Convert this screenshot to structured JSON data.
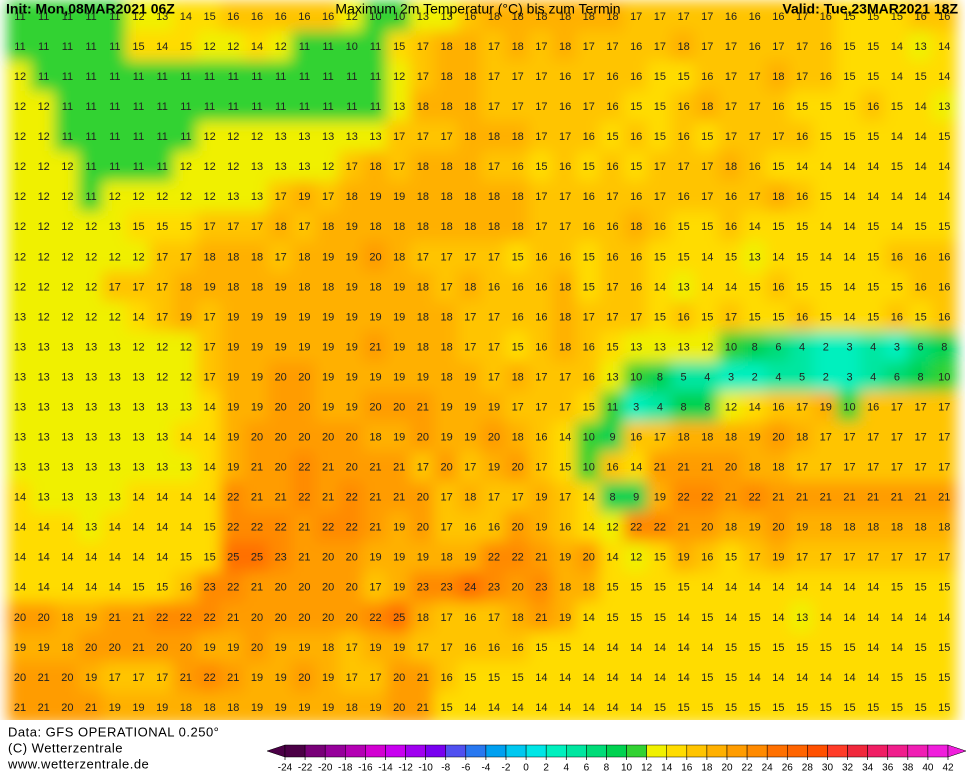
{
  "header": {
    "init": "Init: Mon,08MAR2021 06Z",
    "title": "Maximum 2m Temperatur (°C) bis zum Termin",
    "valid": "Valid: Tue,23MAR2021 18Z"
  },
  "footer": {
    "data": "Data: GFS OPERATIONAL 0.250°",
    "copyright": "(C) Wetterzentrale",
    "url": "www.wetterzentrale.de"
  },
  "colorbar": {
    "ticks": [
      -24,
      -22,
      -20,
      -18,
      -16,
      -14,
      -12,
      -10,
      -8,
      -6,
      -4,
      -2,
      0,
      2,
      4,
      6,
      8,
      10,
      12,
      14,
      16,
      18,
      20,
      22,
      24,
      26,
      28,
      30,
      32,
      34,
      36,
      38,
      40,
      42
    ],
    "colors": [
      "#4b0046",
      "#780078",
      "#96009b",
      "#b400b4",
      "#d200d2",
      "#c800f0",
      "#a000f0",
      "#7800f0",
      "#5050f0",
      "#2878f0",
      "#00a0f0",
      "#00c8f0",
      "#00e6e6",
      "#00f0be",
      "#00e6a0",
      "#00dc78",
      "#00d250",
      "#32d232",
      "#f0f000",
      "#ffdc00",
      "#ffc400",
      "#ffb000",
      "#ff9c00",
      "#ff8a00",
      "#ff7000",
      "#ff6400",
      "#ff5000",
      "#ff3c28",
      "#f0283c",
      "#f01e64",
      "#f01e8c",
      "#f01eb4",
      "#f01edc"
    ]
  },
  "grid": {
    "rows": [
      [
        11,
        11,
        11,
        11,
        11,
        12,
        13,
        14,
        15,
        16,
        16,
        16,
        16,
        16,
        12,
        10,
        10,
        13,
        13,
        16,
        18,
        18,
        18,
        18,
        18,
        18,
        17,
        17,
        17,
        17,
        16,
        16,
        16,
        17,
        16,
        15,
        15,
        15,
        16,
        16
      ],
      [
        11,
        11,
        11,
        11,
        11,
        15,
        14,
        15,
        12,
        12,
        14,
        12,
        11,
        11,
        10,
        11,
        15,
        17,
        18,
        18,
        17,
        18,
        17,
        18,
        17,
        17,
        16,
        17,
        18,
        17,
        17,
        16,
        17,
        17,
        16,
        15,
        15,
        14,
        13,
        14
      ],
      [
        12,
        11,
        11,
        11,
        11,
        11,
        11,
        11,
        11,
        11,
        11,
        11,
        11,
        11,
        11,
        11,
        12,
        17,
        18,
        18,
        17,
        17,
        17,
        16,
        17,
        16,
        16,
        15,
        15,
        16,
        17,
        17,
        18,
        17,
        16,
        15,
        15,
        14,
        15,
        14
      ],
      [
        12,
        12,
        11,
        11,
        11,
        11,
        11,
        11,
        11,
        11,
        11,
        11,
        11,
        11,
        11,
        11,
        13,
        18,
        18,
        18,
        17,
        17,
        17,
        16,
        17,
        16,
        15,
        15,
        16,
        18,
        17,
        17,
        16,
        15,
        15,
        15,
        16,
        15,
        14,
        13
      ],
      [
        12,
        12,
        11,
        11,
        11,
        11,
        11,
        11,
        12,
        12,
        12,
        13,
        13,
        13,
        13,
        13,
        17,
        17,
        17,
        18,
        18,
        18,
        17,
        17,
        16,
        15,
        16,
        15,
        16,
        15,
        17,
        17,
        17,
        16,
        15,
        15,
        15,
        14,
        14,
        15
      ],
      [
        12,
        12,
        12,
        11,
        11,
        11,
        11,
        12,
        12,
        12,
        13,
        13,
        13,
        12,
        17,
        18,
        17,
        18,
        18,
        18,
        17,
        16,
        15,
        16,
        15,
        16,
        15,
        17,
        17,
        17,
        18,
        16,
        15,
        14,
        14,
        14,
        14,
        15,
        14,
        14
      ],
      [
        12,
        12,
        12,
        11,
        12,
        12,
        12,
        12,
        12,
        13,
        13,
        17,
        19,
        17,
        18,
        19,
        19,
        18,
        18,
        18,
        18,
        18,
        17,
        17,
        16,
        17,
        16,
        17,
        16,
        17,
        16,
        17,
        18,
        16,
        15,
        14,
        14,
        14,
        14,
        14
      ],
      [
        12,
        12,
        12,
        12,
        13,
        15,
        15,
        15,
        17,
        17,
        17,
        18,
        17,
        18,
        19,
        18,
        18,
        18,
        18,
        18,
        18,
        18,
        17,
        17,
        16,
        16,
        18,
        16,
        15,
        15,
        16,
        14,
        15,
        15,
        14,
        14,
        15,
        14,
        15,
        15
      ],
      [
        12,
        12,
        12,
        12,
        12,
        12,
        17,
        17,
        18,
        18,
        18,
        17,
        18,
        19,
        19,
        20,
        18,
        17,
        17,
        17,
        17,
        15,
        16,
        16,
        15,
        16,
        16,
        15,
        15,
        14,
        15,
        13,
        14,
        15,
        14,
        14,
        15,
        16,
        16,
        16
      ],
      [
        12,
        12,
        12,
        12,
        17,
        17,
        17,
        18,
        19,
        18,
        18,
        19,
        18,
        18,
        19,
        18,
        19,
        18,
        17,
        18,
        16,
        16,
        16,
        18,
        15,
        17,
        16,
        14,
        13,
        14,
        14,
        15,
        16,
        15,
        15,
        14,
        15,
        15,
        16,
        16
      ],
      [
        13,
        12,
        12,
        12,
        12,
        14,
        17,
        19,
        17,
        19,
        19,
        19,
        19,
        19,
        19,
        19,
        19,
        18,
        18,
        17,
        17,
        16,
        16,
        18,
        17,
        17,
        17,
        15,
        16,
        15,
        17,
        15,
        15,
        16,
        15,
        14,
        15,
        16,
        15,
        16
      ],
      [
        13,
        13,
        13,
        13,
        13,
        12,
        12,
        12,
        17,
        19,
        19,
        19,
        19,
        19,
        19,
        21,
        19,
        18,
        18,
        17,
        17,
        15,
        16,
        18,
        16,
        15,
        13,
        13,
        13,
        12,
        10,
        8,
        6,
        4,
        2,
        3,
        4,
        3,
        6,
        8
      ],
      [
        13,
        13,
        13,
        13,
        13,
        13,
        12,
        12,
        17,
        19,
        19,
        20,
        20,
        19,
        19,
        19,
        19,
        19,
        18,
        19,
        17,
        18,
        17,
        17,
        16,
        13,
        10,
        8,
        5,
        4,
        3,
        2,
        4,
        5,
        2,
        3,
        4,
        6,
        8,
        10
      ],
      [
        13,
        13,
        13,
        13,
        13,
        13,
        13,
        13,
        14,
        19,
        19,
        20,
        20,
        19,
        19,
        20,
        20,
        21,
        19,
        19,
        19,
        17,
        17,
        17,
        15,
        11,
        3,
        4,
        8,
        8,
        12,
        14,
        16,
        17,
        19,
        10,
        16,
        17,
        17,
        17
      ],
      [
        13,
        13,
        13,
        13,
        13,
        13,
        13,
        14,
        14,
        19,
        20,
        20,
        20,
        20,
        20,
        18,
        19,
        20,
        19,
        19,
        20,
        18,
        16,
        14,
        10,
        9,
        16,
        17,
        18,
        18,
        18,
        19,
        20,
        18,
        17,
        17,
        17,
        17,
        17,
        17
      ],
      [
        13,
        13,
        13,
        13,
        13,
        13,
        13,
        13,
        14,
        19,
        21,
        20,
        22,
        21,
        20,
        21,
        21,
        17,
        20,
        17,
        19,
        20,
        17,
        15,
        10,
        16,
        14,
        21,
        21,
        21,
        20,
        18,
        18,
        17,
        17,
        17,
        17,
        17,
        17,
        17
      ],
      [
        14,
        13,
        13,
        13,
        13,
        14,
        14,
        14,
        14,
        22,
        21,
        21,
        22,
        21,
        22,
        21,
        21,
        20,
        17,
        18,
        17,
        17,
        19,
        17,
        14,
        8,
        9,
        19,
        22,
        22,
        21,
        22,
        21,
        21,
        21,
        21,
        21,
        21,
        21,
        21
      ],
      [
        14,
        14,
        14,
        13,
        14,
        14,
        14,
        14,
        15,
        22,
        22,
        22,
        21,
        22,
        22,
        21,
        19,
        20,
        17,
        16,
        16,
        20,
        19,
        16,
        14,
        12,
        22,
        22,
        21,
        20,
        18,
        19,
        20,
        19,
        18,
        18,
        18,
        18,
        18,
        18
      ],
      [
        14,
        14,
        14,
        14,
        14,
        14,
        14,
        15,
        15,
        25,
        25,
        23,
        21,
        20,
        20,
        19,
        19,
        19,
        18,
        19,
        22,
        22,
        21,
        19,
        20,
        14,
        12,
        15,
        19,
        16,
        15,
        17,
        19,
        17,
        17,
        17,
        17,
        17,
        17,
        17
      ],
      [
        14,
        14,
        14,
        14,
        14,
        15,
        15,
        16,
        23,
        22,
        21,
        20,
        20,
        20,
        20,
        17,
        19,
        23,
        23,
        24,
        23,
        20,
        23,
        18,
        18,
        15,
        15,
        15,
        15,
        14,
        14,
        14,
        14,
        14,
        14,
        14,
        14,
        15,
        15,
        15
      ],
      [
        20,
        20,
        18,
        19,
        21,
        21,
        22,
        22,
        22,
        21,
        20,
        20,
        20,
        20,
        20,
        22,
        25,
        18,
        17,
        16,
        17,
        18,
        21,
        19,
        14,
        15,
        15,
        15,
        14,
        15,
        14,
        15,
        14,
        13,
        14,
        14,
        14,
        14,
        14,
        14
      ],
      [
        19,
        19,
        18,
        20,
        20,
        21,
        20,
        20,
        19,
        19,
        20,
        19,
        19,
        18,
        17,
        19,
        19,
        17,
        17,
        16,
        16,
        16,
        15,
        15,
        14,
        14,
        14,
        14,
        14,
        14,
        15,
        15,
        15,
        15,
        15,
        15,
        14,
        14,
        15,
        15
      ],
      [
        20,
        21,
        20,
        19,
        17,
        17,
        17,
        21,
        22,
        21,
        19,
        19,
        20,
        19,
        17,
        17,
        20,
        21,
        16,
        15,
        15,
        15,
        14,
        14,
        14,
        14,
        14,
        14,
        14,
        15,
        15,
        14,
        14,
        14,
        14,
        14,
        14,
        15,
        15,
        15
      ],
      [
        21,
        21,
        20,
        21,
        19,
        19,
        19,
        18,
        18,
        18,
        19,
        19,
        19,
        19,
        18,
        19,
        20,
        21,
        15,
        14,
        14,
        14,
        14,
        14,
        14,
        14,
        14,
        15,
        15,
        15,
        15,
        15,
        15,
        15,
        15,
        15,
        15,
        15,
        15,
        15
      ]
    ]
  }
}
